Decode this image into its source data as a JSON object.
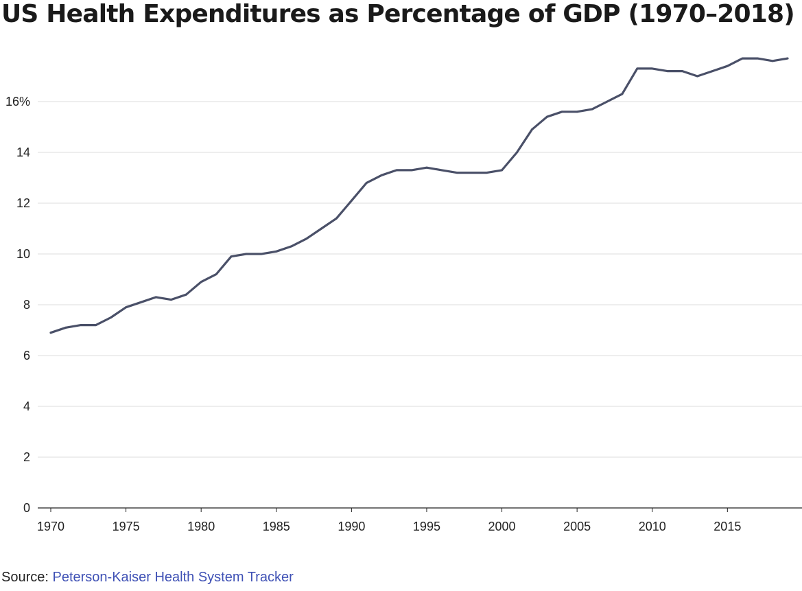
{
  "title": "US Health Expenditures as Percentage of GDP (1970–2018)",
  "footer": {
    "source_prefix": "Source:",
    "source_link": "Peterson-Kaiser Health System Tracker"
  },
  "colors": {
    "line": "#4a5068",
    "grid": "#dddddd",
    "axis": "#222222",
    "link": "#3f51b5"
  },
  "chart_data": {
    "type": "line",
    "title": "US Health Expenditures as Percentage of GDP (1970–2018)",
    "xlabel": "",
    "ylabel": "",
    "xlim": [
      1970,
      2019
    ],
    "ylim": [
      0,
      18
    ],
    "y_ticks": [
      0,
      2,
      4,
      6,
      8,
      10,
      12,
      14,
      16
    ],
    "y_tick_labels": [
      "0",
      "2",
      "4",
      "6",
      "8",
      "10",
      "12",
      "14",
      "16%"
    ],
    "x_ticks": [
      1970,
      1975,
      1980,
      1985,
      1990,
      1995,
      2000,
      2005,
      2010,
      2015
    ],
    "x_tick_labels": [
      "1970",
      "1975",
      "1980",
      "1985",
      "1990",
      "1995",
      "2000",
      "2005",
      "2010",
      "2015"
    ],
    "grid": "horizontal",
    "series": [
      {
        "x": [
          1970,
          1971,
          1972,
          1973,
          1974,
          1975,
          1976,
          1977,
          1978,
          1979,
          1980,
          1981,
          1982,
          1983,
          1984,
          1985,
          1986,
          1987,
          1988,
          1989,
          1990,
          1991,
          1992,
          1993,
          1994,
          1995,
          1996,
          1997,
          1998,
          1999,
          2000,
          2001,
          2002,
          2003,
          2004,
          2005,
          2006,
          2007,
          2008,
          2009,
          2010,
          2011,
          2012,
          2013,
          2014,
          2015,
          2016,
          2017,
          2018,
          2019
        ],
        "y": [
          6.9,
          7.1,
          7.2,
          7.2,
          7.5,
          7.9,
          8.1,
          8.3,
          8.2,
          8.4,
          8.9,
          9.2,
          9.9,
          10.0,
          10.0,
          10.1,
          10.3,
          10.6,
          11.0,
          11.4,
          12.1,
          12.8,
          13.1,
          13.3,
          13.3,
          13.4,
          13.3,
          13.2,
          13.2,
          13.2,
          13.3,
          14.0,
          14.9,
          15.4,
          15.6,
          15.6,
          15.7,
          16.0,
          16.3,
          17.3,
          17.3,
          17.2,
          17.2,
          17.0,
          17.2,
          17.4,
          17.7,
          17.7,
          17.6,
          17.7
        ]
      }
    ]
  }
}
